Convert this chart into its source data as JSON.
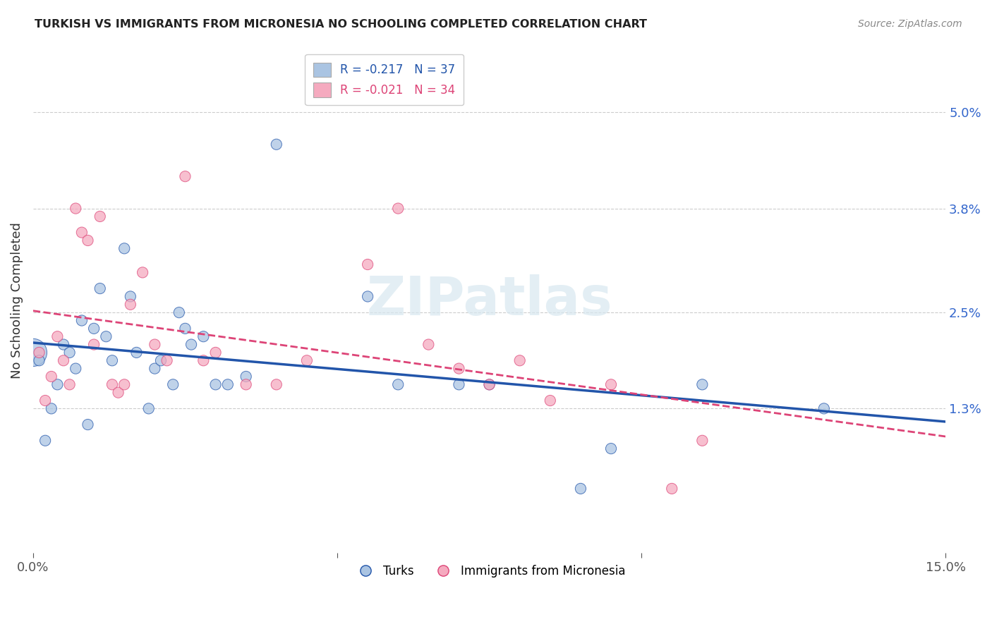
{
  "title": "TURKISH VS IMMIGRANTS FROM MICRONESIA NO SCHOOLING COMPLETED CORRELATION CHART",
  "source": "Source: ZipAtlas.com",
  "ylabel": "No Schooling Completed",
  "ytick_labels": [
    "1.3%",
    "2.5%",
    "3.8%",
    "5.0%"
  ],
  "ytick_values": [
    0.013,
    0.025,
    0.038,
    0.05
  ],
  "xmin": 0.0,
  "xmax": 0.15,
  "ymin": -0.005,
  "ymax": 0.058,
  "legend_r1": "R = -0.217",
  "legend_n1": "N = 37",
  "legend_r2": "R = -0.021",
  "legend_n2": "N = 34",
  "color_blue": "#aac4e2",
  "color_pink": "#f5aabf",
  "line_blue": "#2255aa",
  "line_pink": "#dd4477",
  "turks_x": [
    0.0,
    0.001,
    0.002,
    0.003,
    0.004,
    0.005,
    0.006,
    0.007,
    0.008,
    0.009,
    0.01,
    0.011,
    0.012,
    0.013,
    0.015,
    0.016,
    0.017,
    0.019,
    0.02,
    0.021,
    0.023,
    0.024,
    0.025,
    0.026,
    0.028,
    0.03,
    0.032,
    0.035,
    0.04,
    0.055,
    0.06,
    0.07,
    0.075,
    0.09,
    0.095,
    0.11,
    0.13
  ],
  "turks_y": [
    0.02,
    0.019,
    0.009,
    0.013,
    0.016,
    0.021,
    0.02,
    0.018,
    0.024,
    0.011,
    0.023,
    0.028,
    0.022,
    0.019,
    0.033,
    0.027,
    0.02,
    0.013,
    0.018,
    0.019,
    0.016,
    0.025,
    0.023,
    0.021,
    0.022,
    0.016,
    0.016,
    0.017,
    0.046,
    0.027,
    0.016,
    0.016,
    0.016,
    0.003,
    0.008,
    0.016,
    0.013
  ],
  "turks_size": [
    800,
    120,
    120,
    120,
    120,
    120,
    120,
    120,
    120,
    120,
    120,
    120,
    120,
    120,
    120,
    120,
    120,
    120,
    120,
    120,
    120,
    120,
    120,
    120,
    120,
    120,
    120,
    120,
    120,
    120,
    120,
    120,
    120,
    120,
    120,
    120,
    120
  ],
  "micro_x": [
    0.001,
    0.002,
    0.003,
    0.004,
    0.005,
    0.006,
    0.007,
    0.008,
    0.009,
    0.01,
    0.011,
    0.013,
    0.014,
    0.015,
    0.016,
    0.018,
    0.02,
    0.022,
    0.025,
    0.028,
    0.03,
    0.035,
    0.04,
    0.045,
    0.055,
    0.06,
    0.065,
    0.07,
    0.075,
    0.08,
    0.085,
    0.095,
    0.105,
    0.11
  ],
  "micro_y": [
    0.02,
    0.014,
    0.017,
    0.022,
    0.019,
    0.016,
    0.038,
    0.035,
    0.034,
    0.021,
    0.037,
    0.016,
    0.015,
    0.016,
    0.026,
    0.03,
    0.021,
    0.019,
    0.042,
    0.019,
    0.02,
    0.016,
    0.016,
    0.019,
    0.031,
    0.038,
    0.021,
    0.018,
    0.016,
    0.019,
    0.014,
    0.016,
    0.003,
    0.009
  ],
  "micro_size": [
    120,
    120,
    120,
    120,
    120,
    120,
    120,
    120,
    120,
    120,
    120,
    120,
    120,
    120,
    120,
    120,
    120,
    120,
    120,
    120,
    120,
    120,
    120,
    120,
    120,
    120,
    120,
    120,
    120,
    120,
    120,
    120,
    120,
    120
  ],
  "background": "#ffffff",
  "grid_color": "#cccccc",
  "watermark": "ZIPatlas"
}
